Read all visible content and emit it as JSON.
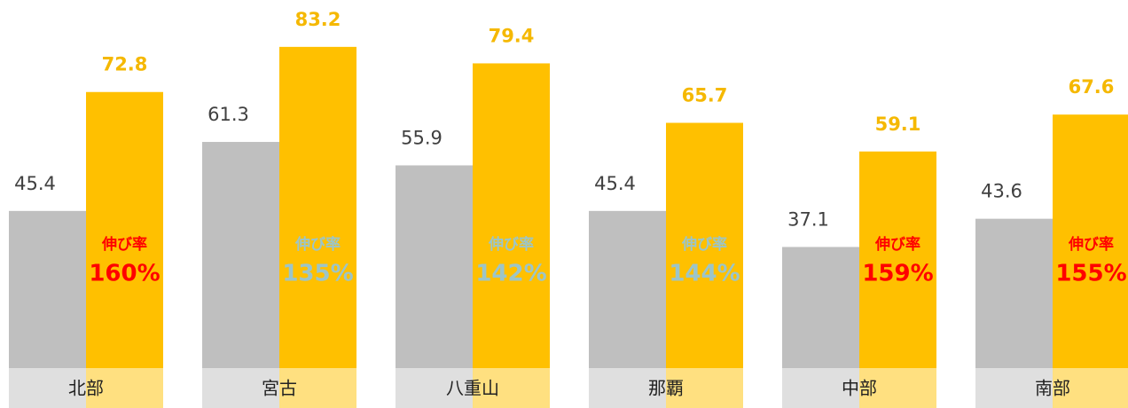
{
  "chart_data": {
    "type": "bar",
    "categories": [
      "北部",
      "宮古",
      "八重山",
      "那覇",
      "中部",
      "南部"
    ],
    "series": [
      {
        "color": "#bfbfbf",
        "values": [
          45.4,
          61.3,
          55.9,
          45.4,
          37.1,
          43.6
        ]
      },
      {
        "color": "#ffc000",
        "values": [
          72.8,
          83.2,
          79.4,
          65.7,
          59.1,
          67.6
        ]
      }
    ],
    "ylim": [
      0,
      94
    ],
    "annotations": [
      {
        "label": "伸び率",
        "text": "160%",
        "color": "#ff0000"
      },
      {
        "label": "伸び率",
        "text": "135%",
        "color": "#9cc5c9"
      },
      {
        "label": "伸び率",
        "text": "142%",
        "color": "#9cc5c9"
      },
      {
        "label": "伸び率",
        "text": "144%",
        "color": "#9cc5c9"
      },
      {
        "label": "伸び率",
        "text": "159%",
        "color": "#ff0000"
      },
      {
        "label": "伸び率",
        "text": "155%",
        "color": "#ff0000"
      }
    ]
  }
}
